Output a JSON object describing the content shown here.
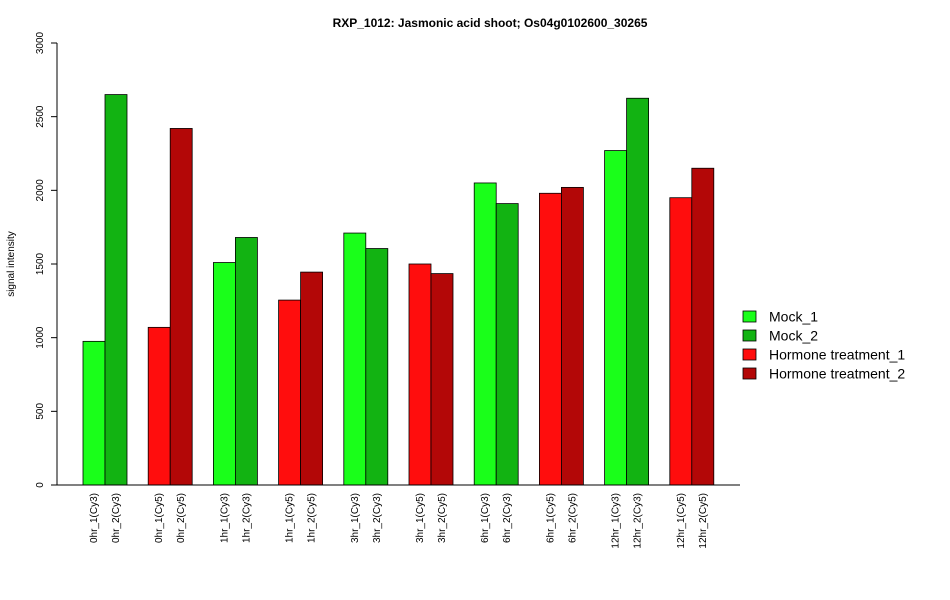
{
  "chart_data": {
    "type": "bar",
    "title": "RXP_1012: Jasmonic acid shoot; Os04g0102600_30265",
    "ylabel": "signal intensity",
    "xlabel": "",
    "ylim": [
      0,
      3000
    ],
    "yticks": [
      0,
      500,
      1000,
      1500,
      2000,
      2500,
      3000
    ],
    "grid": false,
    "legend_position": "right",
    "groups": [
      {
        "labels": [
          "0hr_1(Cy3)",
          "0hr_2(Cy3)"
        ],
        "values": [
          975,
          2650
        ],
        "series": [
          "Mock_1",
          "Mock_2"
        ]
      },
      {
        "labels": [
          "0hr_1(Cy5)",
          "0hr_2(Cy5)"
        ],
        "values": [
          1070,
          2420
        ],
        "series": [
          "Hormone treatment_1",
          "Hormone treatment_2"
        ]
      },
      {
        "labels": [
          "1hr_1(Cy3)",
          "1hr_2(Cy3)"
        ],
        "values": [
          1510,
          1680
        ],
        "series": [
          "Mock_1",
          "Mock_2"
        ]
      },
      {
        "labels": [
          "1hr_1(Cy5)",
          "1hr_2(Cy5)"
        ],
        "values": [
          1255,
          1445
        ],
        "series": [
          "Hormone treatment_1",
          "Hormone treatment_2"
        ]
      },
      {
        "labels": [
          "3hr_1(Cy3)",
          "3hr_2(Cy3)"
        ],
        "values": [
          1710,
          1605
        ],
        "series": [
          "Mock_1",
          "Mock_2"
        ]
      },
      {
        "labels": [
          "3hr_1(Cy5)",
          "3hr_2(Cy5)"
        ],
        "values": [
          1500,
          1435
        ],
        "series": [
          "Hormone treatment_1",
          "Hormone treatment_2"
        ]
      },
      {
        "labels": [
          "6hr_1(Cy3)",
          "6hr_2(Cy3)"
        ],
        "values": [
          2050,
          1910
        ],
        "series": [
          "Mock_1",
          "Mock_2"
        ]
      },
      {
        "labels": [
          "6hr_1(Cy5)",
          "6hr_2(Cy5)"
        ],
        "values": [
          1980,
          2020
        ],
        "series": [
          "Hormone treatment_1",
          "Hormone treatment_2"
        ]
      },
      {
        "labels": [
          "12hr_1(Cy3)",
          "12hr_2(Cy3)"
        ],
        "values": [
          2270,
          2625
        ],
        "series": [
          "Mock_1",
          "Mock_2"
        ]
      },
      {
        "labels": [
          "12hr_1(Cy5)",
          "12hr_2(Cy5)"
        ],
        "values": [
          1950,
          2150
        ],
        "series": [
          "Hormone treatment_1",
          "Hormone treatment_2"
        ]
      }
    ],
    "legend": [
      {
        "name": "Mock_1",
        "color": "#1aff1a"
      },
      {
        "name": "Mock_2",
        "color": "#12b312"
      },
      {
        "name": "Hormone treatment_1",
        "color": "#ff0d0d"
      },
      {
        "name": "Hormone treatment_2",
        "color": "#b30707"
      }
    ]
  }
}
